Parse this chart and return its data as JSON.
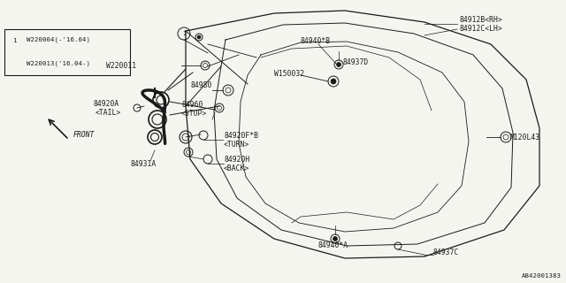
{
  "bg_color": "#f5f5f0",
  "line_color": "#1a1a1a",
  "text_color": "#1a1a1a",
  "fig_width": 6.4,
  "fig_height": 3.2,
  "dpi": 100,
  "footnote": "A842001383",
  "legend_lines": [
    "W220004(-'16.04)",
    "W220013('16.04-)"
  ]
}
